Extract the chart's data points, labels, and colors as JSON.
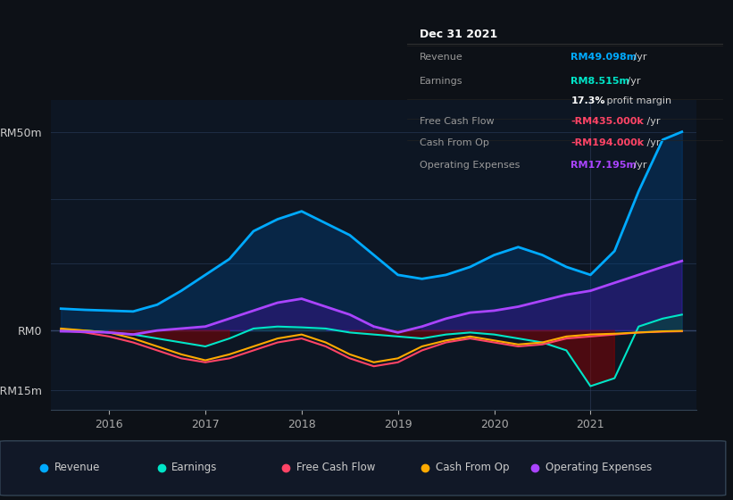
{
  "bg_color": "#0d1117",
  "plot_bg_color": "#0d1623",
  "grid_color": "#1e2d45",
  "title_date": "Dec 31 2021",
  "ylim": [
    -20,
    58
  ],
  "legend": [
    {
      "label": "Revenue",
      "color": "#00aaff"
    },
    {
      "label": "Earnings",
      "color": "#00e5c8"
    },
    {
      "label": "Free Cash Flow",
      "color": "#ff4466"
    },
    {
      "label": "Cash From Op",
      "color": "#ffaa00"
    },
    {
      "label": "Operating Expenses",
      "color": "#aa44ff"
    }
  ],
  "x": [
    2015.5,
    2015.75,
    2016.0,
    2016.25,
    2016.5,
    2016.75,
    2017.0,
    2017.25,
    2017.5,
    2017.75,
    2018.0,
    2018.25,
    2018.5,
    2018.75,
    2019.0,
    2019.25,
    2019.5,
    2019.75,
    2020.0,
    2020.25,
    2020.5,
    2020.75,
    2021.0,
    2021.25,
    2021.5,
    2021.75,
    2021.95
  ],
  "revenue": [
    5.5,
    5.2,
    5.0,
    4.8,
    6.5,
    10.0,
    14.0,
    18.0,
    25.0,
    28.0,
    30.0,
    27.0,
    24.0,
    19.0,
    14.0,
    13.0,
    14.0,
    16.0,
    19.0,
    21.0,
    19.0,
    16.0,
    14.0,
    20.0,
    35.0,
    48.0,
    50.0
  ],
  "earnings": [
    0.2,
    0.0,
    -0.5,
    -1.0,
    -2.0,
    -3.0,
    -4.0,
    -2.0,
    0.5,
    1.0,
    0.8,
    0.5,
    -0.5,
    -1.0,
    -1.5,
    -2.0,
    -1.0,
    -0.5,
    -1.0,
    -2.0,
    -3.0,
    -5.0,
    -14.0,
    -12.0,
    1.0,
    3.0,
    4.0
  ],
  "free_cash_flow": [
    0.0,
    -0.5,
    -1.5,
    -3.0,
    -5.0,
    -7.0,
    -8.0,
    -7.0,
    -5.0,
    -3.0,
    -2.0,
    -4.0,
    -7.0,
    -9.0,
    -8.0,
    -5.0,
    -3.0,
    -2.0,
    -3.0,
    -4.0,
    -3.5,
    -2.0,
    -1.5,
    -1.0,
    -0.5,
    -0.3,
    -0.2
  ],
  "cash_from_op": [
    0.5,
    0.0,
    -0.5,
    -2.0,
    -4.0,
    -6.0,
    -7.5,
    -6.0,
    -4.0,
    -2.0,
    -1.0,
    -3.0,
    -6.0,
    -8.0,
    -7.0,
    -4.0,
    -2.5,
    -1.5,
    -2.5,
    -3.5,
    -3.0,
    -1.5,
    -1.0,
    -0.8,
    -0.5,
    -0.2,
    -0.1
  ],
  "op_expenses": [
    -0.2,
    -0.3,
    -0.5,
    -1.0,
    0.0,
    0.5,
    1.0,
    3.0,
    5.0,
    7.0,
    8.0,
    6.0,
    4.0,
    1.0,
    -0.5,
    1.0,
    3.0,
    4.5,
    5.0,
    6.0,
    7.5,
    9.0,
    10.0,
    12.0,
    14.0,
    16.0,
    17.5
  ],
  "info_rows": [
    {
      "label": "Revenue",
      "value": "RM49.098m",
      "unit": " /yr",
      "val_color": "#00aaff",
      "divider": true
    },
    {
      "label": "Earnings",
      "value": "RM8.515m",
      "unit": " /yr",
      "val_color": "#00e5c8",
      "divider": false
    },
    {
      "label": "",
      "value": "17.3%",
      "unit": " profit margin",
      "val_color": "#ffffff",
      "divider": true
    },
    {
      "label": "Free Cash Flow",
      "value": "-RM435.000k",
      "unit": " /yr",
      "val_color": "#ff4466",
      "divider": true
    },
    {
      "label": "Cash From Op",
      "value": "-RM194.000k",
      "unit": " /yr",
      "val_color": "#ff4466",
      "divider": true
    },
    {
      "label": "Operating Expenses",
      "value": "RM17.195m",
      "unit": " /yr",
      "val_color": "#aa44ff",
      "divider": false
    }
  ]
}
